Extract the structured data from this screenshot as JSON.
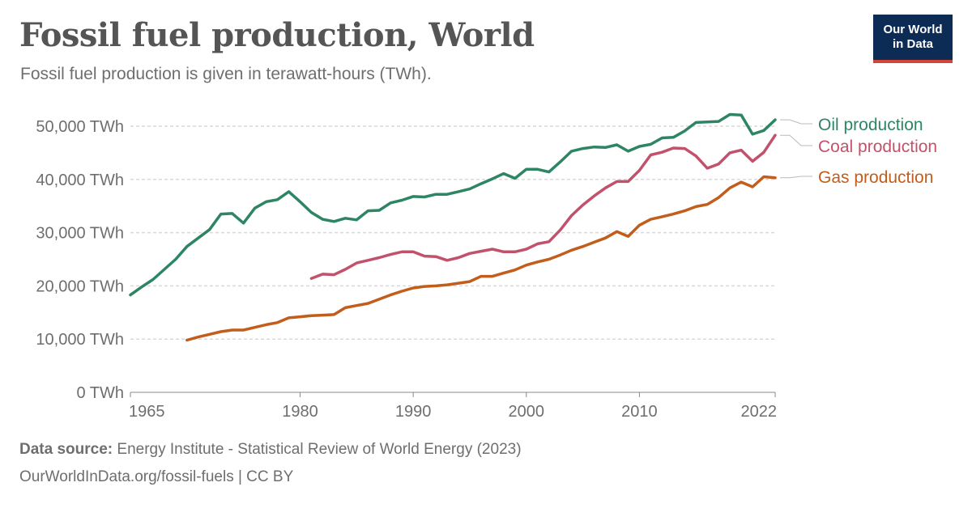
{
  "header": {
    "title": "Fossil fuel production, World",
    "subtitle": "Fossil fuel production is given in terawatt-hours (TWh).",
    "logo_line1": "Our World",
    "logo_line2": "in Data"
  },
  "footer": {
    "source_label": "Data source:",
    "source_text": "Energy Institute - Statistical Review of World Energy (2023)",
    "link_text": "OurWorldInData.org/fossil-fuels | CC BY"
  },
  "colors": {
    "oil": "#2e8564",
    "coal": "#c2516b",
    "gas": "#c25d1c",
    "grid": "#d9d9d9",
    "axis_text": "#6e6e6e"
  },
  "chart_data": {
    "type": "line",
    "title": "Fossil fuel production, World",
    "subtitle": "Fossil fuel production is given in terawatt-hours (TWh).",
    "xlim": [
      1965,
      2022
    ],
    "ylim": [
      0,
      50000
    ],
    "x_ticks": [
      1965,
      1980,
      1990,
      2000,
      2010,
      2022
    ],
    "y_ticks": [
      {
        "value": 0,
        "label": "0 TWh"
      },
      {
        "value": 10000,
        "label": "10,000 TWh"
      },
      {
        "value": 20000,
        "label": "20,000 TWh"
      },
      {
        "value": 30000,
        "label": "30,000 TWh"
      },
      {
        "value": 40000,
        "label": "40,000 TWh"
      },
      {
        "value": 50000,
        "label": "50,000 TWh"
      }
    ],
    "grid": "horizontal dashed",
    "legend": "right, inline labels",
    "series": [
      {
        "name": "Oil production",
        "color": "#2e8564",
        "x": [
          1965,
          1966,
          1967,
          1968,
          1969,
          1970,
          1971,
          1972,
          1973,
          1974,
          1975,
          1976,
          1977,
          1978,
          1979,
          1980,
          1981,
          1982,
          1983,
          1984,
          1985,
          1986,
          1987,
          1988,
          1989,
          1990,
          1991,
          1992,
          1993,
          1994,
          1995,
          1996,
          1997,
          1998,
          1999,
          2000,
          2001,
          2002,
          2003,
          2004,
          2005,
          2006,
          2007,
          2008,
          2009,
          2010,
          2011,
          2012,
          2013,
          2014,
          2015,
          2016,
          2017,
          2018,
          2019,
          2020,
          2021,
          2022
        ],
        "values": [
          18300,
          19800,
          21200,
          23100,
          25000,
          27400,
          29000,
          30600,
          33500,
          33600,
          31800,
          34600,
          35800,
          36200,
          37700,
          35800,
          33800,
          32500,
          32100,
          32700,
          32400,
          34100,
          34200,
          35600,
          36100,
          36800,
          36700,
          37200,
          37200,
          37700,
          38200,
          39200,
          40100,
          41100,
          40200,
          41900,
          41900,
          41400,
          43300,
          45300,
          45800,
          46100,
          46000,
          46500,
          45300,
          46200,
          46600,
          47800,
          47900,
          49100,
          50700,
          50800,
          50900,
          52200,
          52100,
          48500,
          49200,
          51200
        ]
      },
      {
        "name": "Coal production",
        "color": "#c2516b",
        "x": [
          1981,
          1982,
          1983,
          1984,
          1985,
          1986,
          1987,
          1988,
          1989,
          1990,
          1991,
          1992,
          1993,
          1994,
          1995,
          1996,
          1997,
          1998,
          1999,
          2000,
          2001,
          2002,
          2003,
          2004,
          2005,
          2006,
          2007,
          2008,
          2009,
          2010,
          2011,
          2012,
          2013,
          2014,
          2015,
          2016,
          2017,
          2018,
          2019,
          2020,
          2021,
          2022
        ],
        "values": [
          21400,
          22200,
          22100,
          23100,
          24300,
          24800,
          25300,
          25900,
          26400,
          26400,
          25600,
          25500,
          24800,
          25300,
          26100,
          26500,
          26900,
          26400,
          26400,
          26900,
          27900,
          28300,
          30500,
          33200,
          35200,
          36900,
          38400,
          39600,
          39600,
          41700,
          44600,
          45100,
          45900,
          45800,
          44400,
          42100,
          42900,
          45000,
          45500,
          43400,
          45100,
          48300
        ]
      },
      {
        "name": "Gas production",
        "color": "#c25d1c",
        "x": [
          1970,
          1971,
          1972,
          1973,
          1974,
          1975,
          1976,
          1977,
          1978,
          1979,
          1980,
          1981,
          1982,
          1983,
          1984,
          1985,
          1986,
          1987,
          1988,
          1989,
          1990,
          1991,
          1992,
          1993,
          1994,
          1995,
          1996,
          1997,
          1998,
          1999,
          2000,
          2001,
          2002,
          2003,
          2004,
          2005,
          2006,
          2007,
          2008,
          2009,
          2010,
          2011,
          2012,
          2013,
          2014,
          2015,
          2016,
          2017,
          2018,
          2019,
          2020,
          2021,
          2022
        ],
        "values": [
          9800,
          10400,
          10900,
          11400,
          11700,
          11700,
          12200,
          12700,
          13100,
          14000,
          14200,
          14400,
          14500,
          14600,
          15900,
          16300,
          16700,
          17500,
          18300,
          19000,
          19600,
          19900,
          20000,
          20200,
          20500,
          20800,
          21800,
          21800,
          22400,
          23000,
          23900,
          24500,
          25000,
          25800,
          26700,
          27400,
          28200,
          29000,
          30200,
          29300,
          31400,
          32500,
          33000,
          33500,
          34100,
          34900,
          35300,
          36600,
          38400,
          39500,
          38600,
          40500,
          40300
        ]
      }
    ]
  }
}
